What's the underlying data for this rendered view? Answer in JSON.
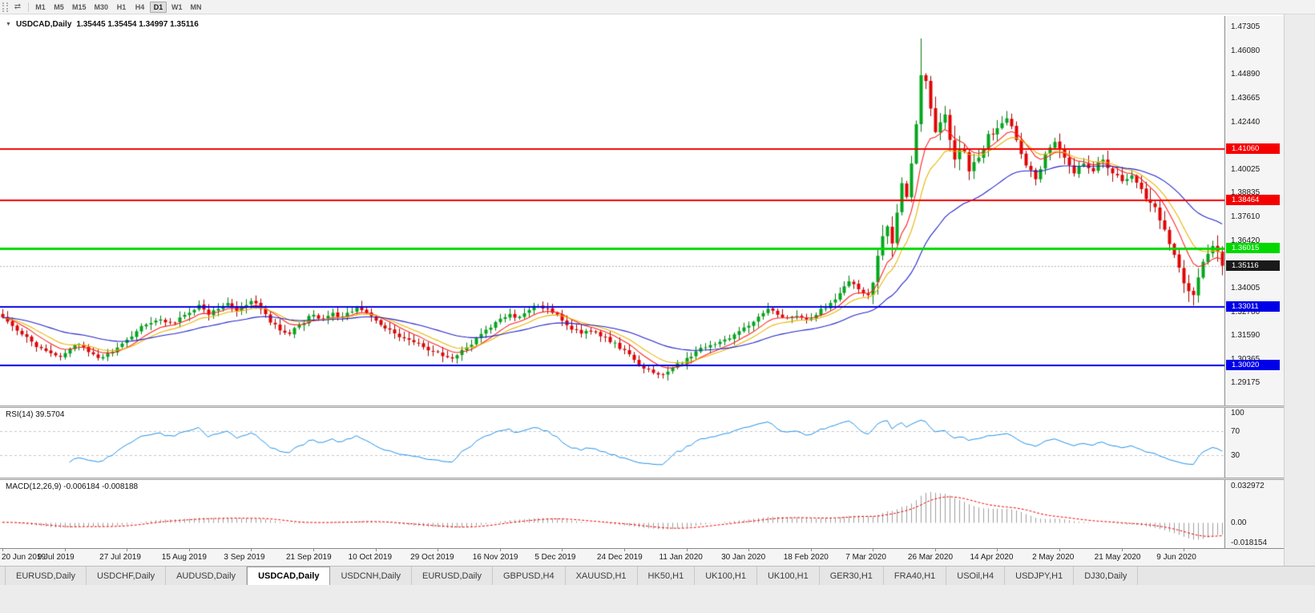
{
  "icons": {
    "chart_arrows": "⇄",
    "symbol_dropdown": "▼"
  },
  "toolbar": {
    "timeframes": [
      "M1",
      "M5",
      "M15",
      "M30",
      "H1",
      "H4",
      "D1",
      "W1",
      "MN"
    ],
    "active_timeframe": "D1"
  },
  "chart": {
    "symbol_display": "USDCAD,Daily",
    "ohlc_display": "1.35445 1.35454 1.34997 1.35116"
  },
  "indicators": {
    "rsi": {
      "label": "RSI(14) 39.5704"
    },
    "macd": {
      "label": "MACD(12,26,9) -0.006184 -0.008188"
    }
  },
  "tabs": {
    "active_index": 3,
    "items": [
      "EURUSD,Daily",
      "USDCHF,Daily",
      "AUDUSD,Daily",
      "USDCAD,Daily",
      "USDCNH,Daily",
      "EURUSD,Daily",
      "GBPUSD,H4",
      "XAUUSD,H1",
      "HK50,H1",
      "UK100,H1",
      "UK100,H1",
      "GER30,H1",
      "FRA40,H1",
      "USOil,H4",
      "USDJPY,H1",
      "DJ30,Daily"
    ]
  },
  "chart_data": {
    "type": "candlestick",
    "symbol": "USDCAD",
    "timeframe": "Daily",
    "ohlc_current": {
      "open": 1.35445,
      "high": 1.35454,
      "low": 1.34997,
      "close": 1.35116
    },
    "ylim": [
      1.28,
      1.4783
    ],
    "y_ticks": [
      "1.47305",
      "1.46080",
      "1.44890",
      "1.43665",
      "1.42440",
      "1.40025",
      "1.38835",
      "1.37610",
      "1.36420",
      "1.34005",
      "1.32780",
      "1.31590",
      "1.30365",
      "1.29175"
    ],
    "x_labels": [
      "20 Jun 2019",
      "9 Jul 2019",
      "27 Jul 2019",
      "15 Aug 2019",
      "3 Sep 2019",
      "21 Sep 2019",
      "10 Oct 2019",
      "29 Oct 2019",
      "16 Nov 2019",
      "5 Dec 2019",
      "24 Dec 2019",
      "11 Jan 2020",
      "30 Jan 2020",
      "18 Feb 2020",
      "7 Mar 2020",
      "26 Mar 2020",
      "14 Apr 2020",
      "2 May 2020",
      "21 May 2020",
      "9 Jun 2020"
    ],
    "bars_per_label": 13,
    "total_bars": 256,
    "seed": 20200619,
    "up_color": "#00a61c",
    "up_border": "#067812",
    "down_color": "#e00404",
    "down_border": "#9e0404",
    "close_anchors": [
      [
        0,
        1.3248
      ],
      [
        2,
        1.3205
      ],
      [
        4,
        1.3162
      ],
      [
        6,
        1.3125
      ],
      [
        8,
        1.3092
      ],
      [
        10,
        1.3066
      ],
      [
        12,
        1.3048
      ],
      [
        14,
        1.309
      ],
      [
        16,
        1.3112
      ],
      [
        18,
        1.3072
      ],
      [
        20,
        1.3042
      ],
      [
        22,
        1.3065
      ],
      [
        24,
        1.3095
      ],
      [
        26,
        1.3135
      ],
      [
        28,
        1.3178
      ],
      [
        30,
        1.3212
      ],
      [
        33,
        1.3238
      ],
      [
        36,
        1.3222
      ],
      [
        39,
        1.3272
      ],
      [
        41,
        1.3312
      ],
      [
        43,
        1.3262
      ],
      [
        45,
        1.3292
      ],
      [
        47,
        1.3322
      ],
      [
        49,
        1.3282
      ],
      [
        52,
        1.3332
      ],
      [
        54,
        1.3292
      ],
      [
        56,
        1.3222
      ],
      [
        58,
        1.3182
      ],
      [
        60,
        1.3165
      ],
      [
        62,
        1.3212
      ],
      [
        65,
        1.3262
      ],
      [
        67,
        1.3242
      ],
      [
        69,
        1.3272
      ],
      [
        71,
        1.3252
      ],
      [
        74,
        1.3302
      ],
      [
        76,
        1.3272
      ],
      [
        78,
        1.3232
      ],
      [
        80,
        1.3192
      ],
      [
        82,
        1.3167
      ],
      [
        84,
        1.3142
      ],
      [
        86,
        1.3122
      ],
      [
        88,
        1.3097
      ],
      [
        91,
        1.3072
      ],
      [
        93,
        1.3046
      ],
      [
        95,
        1.3056
      ],
      [
        97,
        1.3096
      ],
      [
        99,
        1.3142
      ],
      [
        101,
        1.3186
      ],
      [
        104,
        1.3242
      ],
      [
        106,
        1.3266
      ],
      [
        108,
        1.3252
      ],
      [
        110,
        1.3286
      ],
      [
        112,
        1.3306
      ],
      [
        114,
        1.3292
      ],
      [
        117,
        1.3232
      ],
      [
        119,
        1.3186
      ],
      [
        121,
        1.3166
      ],
      [
        123,
        1.3176
      ],
      [
        125,
        1.3152
      ],
      [
        127,
        1.3122
      ],
      [
        130,
        1.3082
      ],
      [
        132,
        1.3032
      ],
      [
        134,
        1.2988
      ],
      [
        136,
        1.2966
      ],
      [
        138,
        1.2956
      ],
      [
        140,
        1.2992
      ],
      [
        143,
        1.3042
      ],
      [
        145,
        1.3076
      ],
      [
        147,
        1.3096
      ],
      [
        149,
        1.3112
      ],
      [
        151,
        1.3136
      ],
      [
        153,
        1.3162
      ],
      [
        156,
        1.3206
      ],
      [
        158,
        1.3252
      ],
      [
        160,
        1.3292
      ],
      [
        162,
        1.3262
      ],
      [
        164,
        1.3246
      ],
      [
        166,
        1.3256
      ],
      [
        169,
        1.3242
      ],
      [
        171,
        1.3292
      ],
      [
        173,
        1.3322
      ],
      [
        175,
        1.3372
      ],
      [
        177,
        1.3432
      ],
      [
        179,
        1.3392
      ],
      [
        181,
        1.3362
      ],
      [
        182,
        1.3425
      ],
      [
        183,
        1.3562
      ],
      [
        184,
        1.3662
      ],
      [
        185,
        1.3712
      ],
      [
        186,
        1.3625
      ],
      [
        187,
        1.3782
      ],
      [
        188,
        1.3932
      ],
      [
        189,
        1.3862
      ],
      [
        190,
        1.4032
      ],
      [
        191,
        1.4232
      ],
      [
        192,
        1.4482
      ],
      [
        193,
        1.4452
      ],
      [
        194,
        1.4312
      ],
      [
        195,
        1.4192
      ],
      [
        196,
        1.4242
      ],
      [
        197,
        1.4282
      ],
      [
        198,
        1.4152
      ],
      [
        199,
        1.4052
      ],
      [
        200,
        1.4102
      ],
      [
        201,
        1.4092
      ],
      [
        202,
        1.3992
      ],
      [
        204,
        1.4062
      ],
      [
        206,
        1.4182
      ],
      [
        208,
        1.4212
      ],
      [
        210,
        1.4262
      ],
      [
        212,
        1.4152
      ],
      [
        214,
        1.4022
      ],
      [
        216,
        1.3952
      ],
      [
        218,
        1.4082
      ],
      [
        220,
        1.4142
      ],
      [
        222,
        1.4062
      ],
      [
        224,
        1.3982
      ],
      [
        226,
        1.4032
      ],
      [
        228,
        1.3992
      ],
      [
        230,
        1.4052
      ],
      [
        232,
        1.3982
      ],
      [
        234,
        1.3942
      ],
      [
        236,
        1.3972
      ],
      [
        238,
        1.3902
      ],
      [
        240,
        1.3832
      ],
      [
        242,
        1.3742
      ],
      [
        244,
        1.3622
      ],
      [
        246,
        1.3502
      ],
      [
        247,
        1.3422
      ],
      [
        248,
        1.3382
      ],
      [
        249,
        1.3362
      ],
      [
        250,
        1.3452
      ],
      [
        251,
        1.3532
      ],
      [
        252,
        1.3572
      ],
      [
        253,
        1.3612
      ],
      [
        254,
        1.3582
      ],
      [
        255,
        1.35116
      ]
    ],
    "wick_overrides": [
      [
        192,
        "high",
        1.4669
      ],
      [
        138,
        "low",
        1.2937
      ],
      [
        249,
        "low",
        1.3345
      ]
    ],
    "volatility_zones": [
      [
        0,
        180,
        1.0
      ],
      [
        181,
        200,
        2.8
      ],
      [
        201,
        239,
        1.6
      ],
      [
        240,
        255,
        2.0
      ]
    ],
    "levels": [
      {
        "price": 1.4106,
        "label": "1.41060",
        "color": "#f50000",
        "width": 2
      },
      {
        "price": 1.38464,
        "label": "1.38464",
        "color": "#f50000",
        "width": 2
      },
      {
        "price": 1.36015,
        "label": "1.36015",
        "color": "#00d800",
        "width": 3
      },
      {
        "price": 1.33011,
        "label": "1.33011",
        "color": "#0000e8",
        "width": 2
      },
      {
        "price": 1.3002,
        "label": "1.30020",
        "color": "#0000e8",
        "width": 2
      }
    ],
    "current_price": {
      "value": 1.35116,
      "label": "1.35116",
      "tag_color": "#1a1a1a",
      "line_color": "#b4b4b4"
    },
    "moving_averages": [
      {
        "name": "fast-ma",
        "period": 8,
        "color": "#ff2020"
      },
      {
        "name": "medium-ma",
        "period": 13,
        "color": "#e8b400"
      },
      {
        "name": "slow-ma",
        "period": 34,
        "color": "#2222cc"
      }
    ],
    "rsi": {
      "period": 14,
      "value": 39.5704,
      "line_color": "#2090e8",
      "level_lines": [
        70,
        30
      ],
      "axis_labels": [
        {
          "value": 100,
          "label": "100"
        },
        {
          "value": 70,
          "label": "70"
        },
        {
          "value": 30,
          "label": "30"
        }
      ]
    },
    "macd": {
      "fast": 12,
      "slow": 26,
      "signal": 9,
      "values": [
        -0.006184,
        -0.008188
      ],
      "ylim": [
        -0.0205,
        0.0355
      ],
      "histogram_color": "#9c9c9c",
      "signal_color": "#f00000",
      "axis_labels": [
        {
          "value": 0.032972,
          "label": "0.032972"
        },
        {
          "value": 0,
          "label": "0.00"
        },
        {
          "value": -0.018154,
          "label": "-0.018154"
        }
      ]
    }
  }
}
